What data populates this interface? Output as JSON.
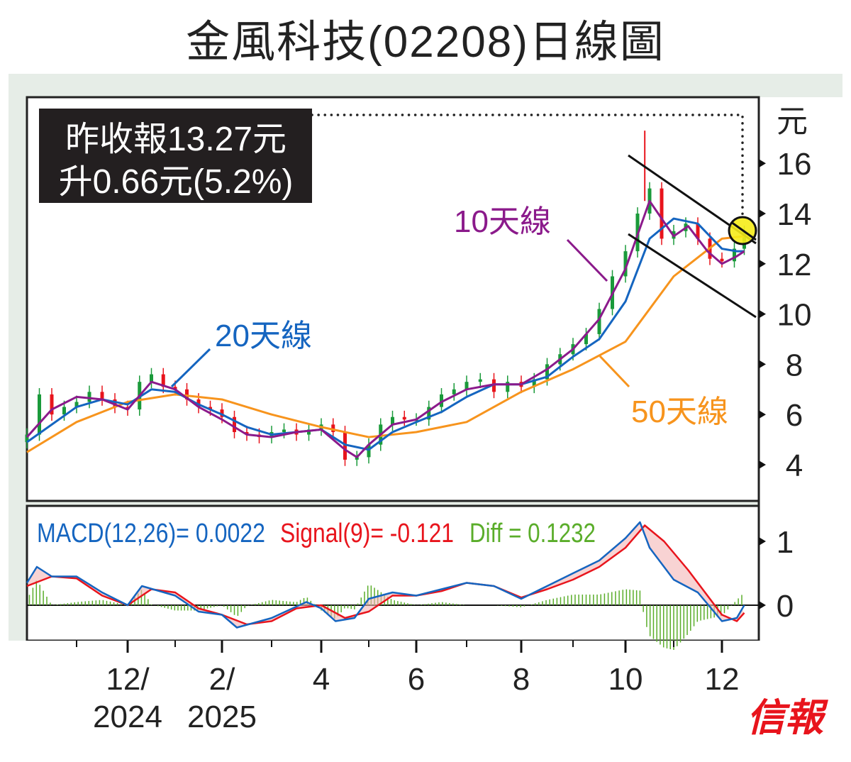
{
  "title": "金風科技(02208)日線圖",
  "info_box": {
    "line1": "昨收報13.27元",
    "line2": "升0.66元(5.2%)"
  },
  "labels": {
    "ma10": "10天線",
    "ma20": "20天線",
    "ma50": "50天線"
  },
  "macd_legend": {
    "macd": "MACD(12,26)= 0.0022",
    "signal": "Signal(9)= -0.121",
    "diff": "Diff = 0.1232"
  },
  "logo": "信報",
  "colors": {
    "ma10": "#8b1a8b",
    "ma20": "#1565c0",
    "ma50": "#f7941d",
    "up": "#1a9a3a",
    "down": "#e8141c",
    "macd": "#1565c0",
    "signal": "#e8141c",
    "diff": "#5aad2a",
    "highlight": "#f5ec1a",
    "frame": "#e6ede7"
  },
  "chart_data": [
    {
      "type": "line",
      "title": "金風科技(02208)日線圖",
      "ylabel": "元",
      "ylim": [
        3,
        18
      ],
      "yticks": [
        "16",
        "14",
        "12",
        "10",
        "8",
        "6",
        "4"
      ],
      "xticks": [
        {
          "t": 2,
          "label1": "12/",
          "label2": "2024"
        },
        {
          "t": 4,
          "label1": "2/",
          "label2": "2025"
        },
        {
          "t": 6,
          "label1": "4",
          "label2": ""
        },
        {
          "t": 8,
          "label1": "6",
          "label2": ""
        },
        {
          "t": 10,
          "label1": "8",
          "label2": ""
        },
        {
          "t": 12,
          "label1": "10",
          "label2": ""
        },
        {
          "t": 14,
          "label1": "12",
          "label2": ""
        }
      ],
      "minor_ticks": [
        1,
        3,
        5,
        7,
        9,
        11,
        13
      ],
      "t_unit": "months since Oct 2024",
      "close": {
        "t": [
          0,
          0.25,
          0.5,
          0.75,
          1,
          1.25,
          1.5,
          1.75,
          2,
          2.25,
          2.5,
          2.75,
          3,
          3.25,
          3.5,
          3.75,
          4,
          4.25,
          4.5,
          4.75,
          5,
          5.25,
          5.5,
          5.75,
          6,
          6.25,
          6.5,
          6.75,
          7,
          7.25,
          7.5,
          7.75,
          8,
          8.25,
          8.5,
          8.75,
          9,
          9.25,
          9.5,
          9.75,
          10,
          10.25,
          10.5,
          10.75,
          11,
          11.25,
          11.5,
          11.75,
          12,
          12.25,
          12.5,
          12.75,
          13,
          13.25,
          13.5,
          13.75,
          14,
          14.25,
          14.45
        ],
        "v": [
          5.2,
          6.8,
          6.0,
          6.3,
          6.5,
          6.9,
          6.6,
          6.3,
          6.2,
          7.3,
          7.6,
          7.1,
          7.0,
          6.6,
          6.3,
          6.2,
          5.9,
          5.3,
          5.2,
          5.1,
          5.3,
          5.4,
          5.2,
          5.4,
          5.6,
          5.3,
          4.2,
          4.3,
          4.8,
          5.6,
          5.9,
          5.8,
          5.8,
          6.3,
          6.8,
          7.0,
          7.3,
          7.4,
          6.9,
          7.3,
          7.1,
          7.4,
          8.0,
          8.4,
          8.8,
          9.2,
          10.2,
          11.5,
          12.5,
          14.0,
          15.0,
          13.0,
          13.3,
          13.6,
          13.0,
          12.2,
          12.1,
          12.6,
          13.27
        ]
      },
      "high_spike": {
        "t": 12.4,
        "v": 17.3
      },
      "series": [
        {
          "name": "10天線",
          "points": [
            [
              0,
              5.1
            ],
            [
              0.5,
              6.2
            ],
            [
              1,
              6.7
            ],
            [
              1.5,
              6.6
            ],
            [
              2,
              6.2
            ],
            [
              2.5,
              7.3
            ],
            [
              3,
              7.0
            ],
            [
              3.5,
              6.3
            ],
            [
              4,
              5.8
            ],
            [
              4.5,
              5.2
            ],
            [
              5,
              5.1
            ],
            [
              5.5,
              5.3
            ],
            [
              6,
              5.4
            ],
            [
              6.5,
              4.6
            ],
            [
              6.75,
              4.3
            ],
            [
              7,
              4.8
            ],
            [
              7.5,
              5.6
            ],
            [
              8,
              5.8
            ],
            [
              8.5,
              6.5
            ],
            [
              9,
              7.0
            ],
            [
              9.5,
              7.2
            ],
            [
              10,
              7.2
            ],
            [
              10.5,
              7.8
            ],
            [
              11,
              8.6
            ],
            [
              11.5,
              9.8
            ],
            [
              12,
              11.8
            ],
            [
              12.5,
              14.5
            ],
            [
              13,
              13.1
            ],
            [
              13.3,
              13.5
            ],
            [
              13.7,
              12.5
            ],
            [
              14,
              12.0
            ],
            [
              14.3,
              12.3
            ],
            [
              14.45,
              12.5
            ]
          ]
        },
        {
          "name": "20天線",
          "points": [
            [
              0,
              4.9
            ],
            [
              0.5,
              5.6
            ],
            [
              1,
              6.3
            ],
            [
              1.5,
              6.6
            ],
            [
              2,
              6.4
            ],
            [
              2.5,
              7.0
            ],
            [
              3,
              6.9
            ],
            [
              3.5,
              6.4
            ],
            [
              4,
              6.0
            ],
            [
              4.5,
              5.5
            ],
            [
              5,
              5.2
            ],
            [
              5.5,
              5.3
            ],
            [
              6,
              5.4
            ],
            [
              6.5,
              4.8
            ],
            [
              7,
              4.6
            ],
            [
              7.5,
              5.3
            ],
            [
              8,
              5.7
            ],
            [
              8.5,
              6.1
            ],
            [
              9,
              6.7
            ],
            [
              9.5,
              7.2
            ],
            [
              10,
              7.2
            ],
            [
              10.5,
              7.5
            ],
            [
              11,
              8.3
            ],
            [
              11.5,
              9.0
            ],
            [
              12,
              10.5
            ],
            [
              12.5,
              13.0
            ],
            [
              13,
              13.8
            ],
            [
              13.5,
              13.6
            ],
            [
              14,
              12.6
            ],
            [
              14.3,
              12.5
            ],
            [
              14.45,
              12.5
            ]
          ]
        },
        {
          "name": "50天線",
          "points": [
            [
              0,
              4.5
            ],
            [
              1,
              5.7
            ],
            [
              2,
              6.5
            ],
            [
              3,
              6.8
            ],
            [
              4,
              6.6
            ],
            [
              5,
              6.0
            ],
            [
              6,
              5.5
            ],
            [
              7,
              5.1
            ],
            [
              8,
              5.3
            ],
            [
              9,
              5.7
            ],
            [
              10,
              6.9
            ],
            [
              11,
              7.8
            ],
            [
              12,
              8.9
            ],
            [
              13,
              11.5
            ],
            [
              14,
              13.0
            ],
            [
              14.45,
              13.1
            ]
          ]
        }
      ]
    },
    {
      "type": "line",
      "title": "MACD",
      "ylim": [
        -0.55,
        1.55
      ],
      "yticks": [
        "1",
        "0"
      ],
      "series": [
        {
          "name": "MACD",
          "points": [
            [
              0,
              0.35
            ],
            [
              0.2,
              0.6
            ],
            [
              0.5,
              0.45
            ],
            [
              1,
              0.45
            ],
            [
              1.5,
              0.2
            ],
            [
              2,
              0.0
            ],
            [
              2.3,
              0.3
            ],
            [
              3,
              0.15
            ],
            [
              3.5,
              -0.1
            ],
            [
              4,
              -0.15
            ],
            [
              4.3,
              -0.35
            ],
            [
              5,
              -0.2
            ],
            [
              5.7,
              0.05
            ],
            [
              6,
              -0.05
            ],
            [
              6.3,
              -0.25
            ],
            [
              6.7,
              -0.2
            ],
            [
              7,
              0.1
            ],
            [
              7.5,
              0.2
            ],
            [
              8,
              0.15
            ],
            [
              8.5,
              0.25
            ],
            [
              9,
              0.35
            ],
            [
              9.5,
              0.3
            ],
            [
              10,
              0.1
            ],
            [
              10.5,
              0.3
            ],
            [
              11,
              0.5
            ],
            [
              11.5,
              0.7
            ],
            [
              12,
              1.05
            ],
            [
              12.3,
              1.3
            ],
            [
              12.5,
              0.9
            ],
            [
              13,
              0.4
            ],
            [
              13.5,
              0.2
            ],
            [
              14,
              -0.25
            ],
            [
              14.3,
              -0.2
            ],
            [
              14.45,
              0.0
            ]
          ]
        },
        {
          "name": "Signal",
          "points": [
            [
              0,
              0.3
            ],
            [
              0.5,
              0.45
            ],
            [
              1,
              0.42
            ],
            [
              1.5,
              0.15
            ],
            [
              2,
              0.0
            ],
            [
              2.5,
              0.25
            ],
            [
              3,
              0.2
            ],
            [
              3.5,
              -0.05
            ],
            [
              4,
              -0.15
            ],
            [
              4.5,
              -0.3
            ],
            [
              5,
              -0.25
            ],
            [
              5.5,
              -0.05
            ],
            [
              6,
              0.0
            ],
            [
              6.5,
              -0.2
            ],
            [
              7,
              -0.1
            ],
            [
              7.5,
              0.15
            ],
            [
              8,
              0.15
            ],
            [
              8.5,
              0.22
            ],
            [
              9,
              0.35
            ],
            [
              9.5,
              0.3
            ],
            [
              10,
              0.12
            ],
            [
              10.5,
              0.25
            ],
            [
              11,
              0.4
            ],
            [
              11.5,
              0.6
            ],
            [
              12,
              0.9
            ],
            [
              12.4,
              1.25
            ],
            [
              12.8,
              1.0
            ],
            [
              13.3,
              0.55
            ],
            [
              13.7,
              0.15
            ],
            [
              14,
              -0.15
            ],
            [
              14.3,
              -0.25
            ],
            [
              14.45,
              -0.12
            ]
          ]
        }
      ]
    }
  ]
}
